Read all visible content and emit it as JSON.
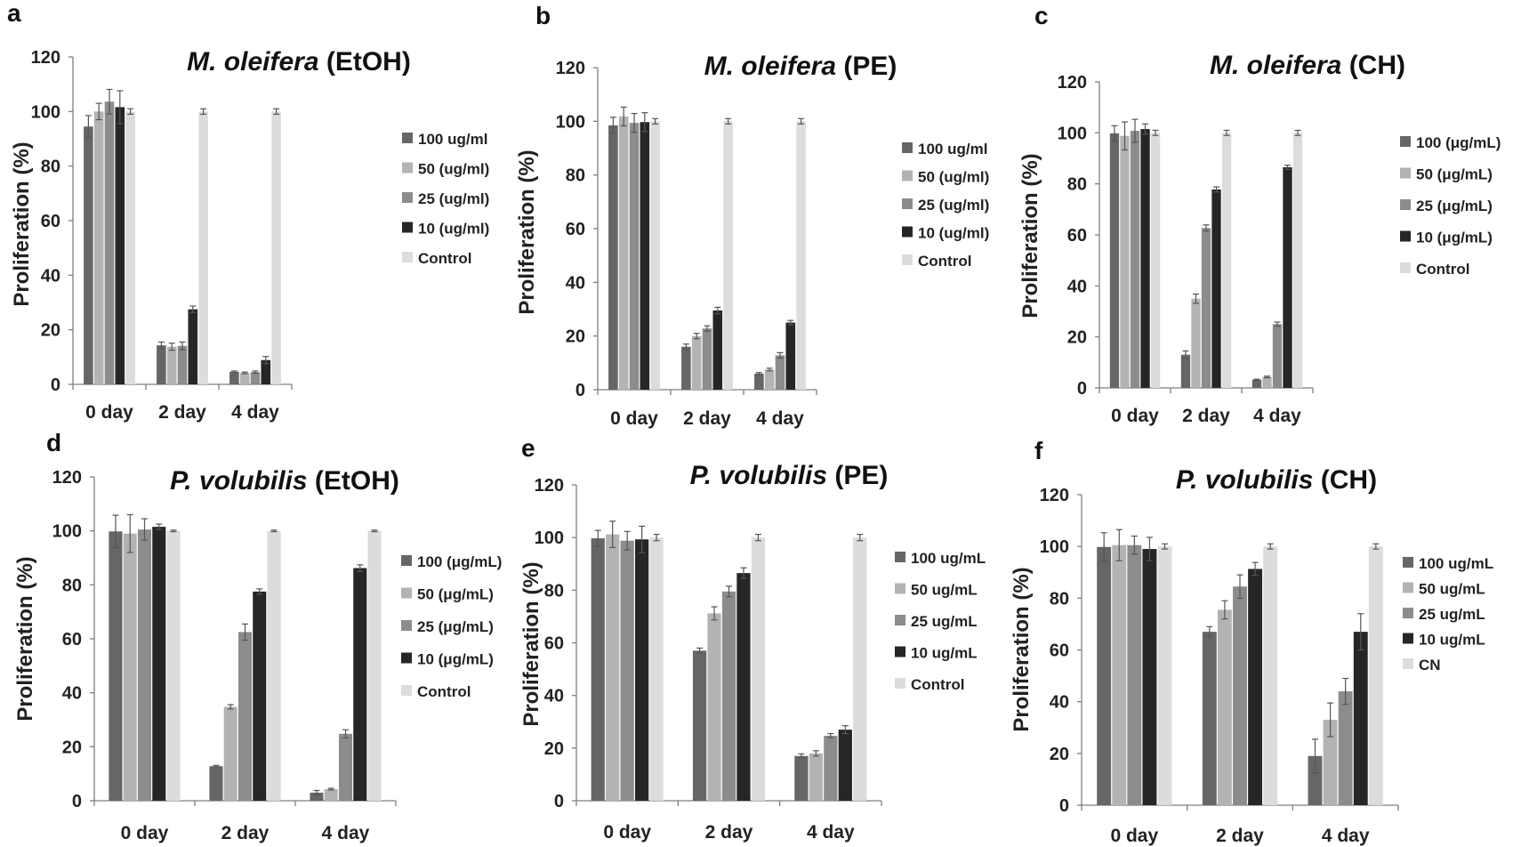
{
  "colors": {
    "series": [
      "#666666",
      "#b3b3b3",
      "#8c8c8c",
      "#262626",
      "#dcdcdc"
    ],
    "axis": "#7f7f7f",
    "errorbar": "#555555"
  },
  "chart_data": [
    {
      "panel": "a",
      "type": "bar",
      "title_italic": "M. oleifera",
      "title_rest": " (EtOH)",
      "ylabel": "Proliferation (%)",
      "ylim": [
        0,
        120
      ],
      "yticks": [
        0,
        20,
        40,
        60,
        80,
        100,
        120
      ],
      "categories": [
        "0 day",
        "2 day",
        "4 day"
      ],
      "series": [
        {
          "name": "100 ug/ml",
          "values": [
            94.5,
            14.3,
            4.6
          ],
          "errors": [
            4.0,
            1.2,
            0.3
          ]
        },
        {
          "name": "50 (ug/ml)",
          "values": [
            100.0,
            13.8,
            4.2
          ],
          "errors": [
            3.0,
            1.3,
            0.3
          ]
        },
        {
          "name": "25 (ug/ml)",
          "values": [
            103.6,
            14.1,
            4.5
          ],
          "errors": [
            4.5,
            1.4,
            0.4
          ]
        },
        {
          "name": "10 (ug/ml)",
          "values": [
            101.6,
            27.5,
            8.9
          ],
          "errors": [
            6.0,
            1.2,
            1.3
          ]
        },
        {
          "name": "Control",
          "values": [
            100.0,
            100.0,
            100.0
          ],
          "errors": [
            1.0,
            1.0,
            1.0
          ]
        }
      ]
    },
    {
      "panel": "b",
      "type": "bar",
      "title_italic": "M. oleifera",
      "title_rest": " (PE)",
      "ylabel": "Proliferation (%)",
      "ylim": [
        0,
        120
      ],
      "yticks": [
        0,
        20,
        40,
        60,
        80,
        100,
        120
      ],
      "categories": [
        "0 day",
        "2 day",
        "4 day"
      ],
      "series": [
        {
          "name": "100 ug/ml",
          "values": [
            98.5,
            16.0,
            6.0
          ],
          "errors": [
            3.0,
            1.0,
            0.4
          ]
        },
        {
          "name": "50 (ug/ml)",
          "values": [
            101.8,
            20.0,
            7.5
          ],
          "errors": [
            3.5,
            1.0,
            0.5
          ]
        },
        {
          "name": "25 (ug/ml)",
          "values": [
            99.4,
            22.8,
            12.8
          ],
          "errors": [
            3.5,
            1.0,
            1.0
          ]
        },
        {
          "name": "10 (ug/ml)",
          "values": [
            99.7,
            29.5,
            25.0
          ],
          "errors": [
            3.5,
            1.2,
            0.8
          ]
        },
        {
          "name": "Control",
          "values": [
            100.0,
            100.0,
            100.0
          ],
          "errors": [
            1.0,
            1.0,
            1.0
          ]
        }
      ]
    },
    {
      "panel": "c",
      "type": "bar",
      "title_italic": "M. oleifera",
      "title_rest": " (CH)",
      "ylabel": "Proliferation (%)",
      "ylim": [
        0,
        120
      ],
      "yticks": [
        0,
        20,
        40,
        60,
        80,
        100,
        120
      ],
      "categories": [
        "0 day",
        "2 day",
        "4 day"
      ],
      "series": [
        {
          "name": "100 (μg/mL)",
          "values": [
            99.8,
            13.0,
            3.2
          ],
          "errors": [
            3.0,
            1.5,
            0.2
          ]
        },
        {
          "name": "50  (μg/mL)",
          "values": [
            98.8,
            35.0,
            4.3
          ],
          "errors": [
            5.5,
            1.8,
            0.3
          ]
        },
        {
          "name": "25  (μg/mL)",
          "values": [
            100.8,
            62.7,
            25.0
          ],
          "errors": [
            4.5,
            1.2,
            0.8
          ]
        },
        {
          "name": "10  (μg/mL)",
          "values": [
            101.5,
            77.8,
            86.5
          ],
          "errors": [
            2.0,
            1.0,
            0.8
          ]
        },
        {
          "name": "Control",
          "values": [
            100.0,
            100.0,
            100.0
          ],
          "errors": [
            1.0,
            1.0,
            1.0
          ]
        }
      ]
    },
    {
      "panel": "d",
      "type": "bar",
      "title_italic": "P. volubilis",
      "title_rest": " (EtOH)",
      "ylabel": "Proliferation (%)",
      "ylim": [
        0,
        120
      ],
      "yticks": [
        0,
        20,
        40,
        60,
        80,
        100,
        120
      ],
      "categories": [
        "0 day",
        "2 day",
        "4 day"
      ],
      "series": [
        {
          "name": "100 (μg/mL)",
          "values": [
            99.8,
            12.8,
            3.0
          ],
          "errors": [
            6.0,
            0.3,
            0.8
          ]
        },
        {
          "name": "50  (μg/mL)",
          "values": [
            99.0,
            34.8,
            4.3
          ],
          "errors": [
            7.0,
            0.8,
            0.3
          ]
        },
        {
          "name": "25  (μg/mL)",
          "values": [
            100.5,
            62.5,
            24.8
          ],
          "errors": [
            4.0,
            3.0,
            1.5
          ]
        },
        {
          "name": "10  (μg/mL)",
          "values": [
            101.5,
            77.5,
            86.2
          ],
          "errors": [
            1.0,
            1.0,
            1.2
          ]
        },
        {
          "name": "Control",
          "values": [
            100.0,
            100.0,
            100.0
          ],
          "errors": [
            0.3,
            0.3,
            0.3
          ]
        }
      ]
    },
    {
      "panel": "e",
      "type": "bar",
      "title_italic": "P. volubilis",
      "title_rest": " (PE)",
      "ylabel": "Proliferation (%)",
      "ylim": [
        0,
        120
      ],
      "yticks": [
        0,
        20,
        40,
        60,
        80,
        100,
        120
      ],
      "categories": [
        "0 day",
        "2 day",
        "4 day"
      ],
      "series": [
        {
          "name": "100 ug/mL",
          "values": [
            99.7,
            57.0,
            17.0
          ],
          "errors": [
            3.0,
            1.0,
            0.8
          ]
        },
        {
          "name": "50 ug/mL",
          "values": [
            101.2,
            71.2,
            18.0
          ],
          "errors": [
            5.0,
            2.5,
            1.0
          ]
        },
        {
          "name": "25 ug/mL",
          "values": [
            98.8,
            79.5,
            24.7
          ],
          "errors": [
            3.5,
            2.0,
            0.8
          ]
        },
        {
          "name": "10 ug/mL",
          "values": [
            99.3,
            86.5,
            27.0
          ],
          "errors": [
            5.0,
            2.0,
            1.5
          ]
        },
        {
          "name": "Control",
          "values": [
            100.0,
            100.0,
            100.0
          ],
          "errors": [
            1.2,
            1.2,
            1.2
          ]
        }
      ]
    },
    {
      "panel": "f",
      "type": "bar",
      "title_italic": "P. volubilis",
      "title_rest": " (CH)",
      "ylabel": "Proliferation (%)",
      "ylim": [
        0,
        120
      ],
      "yticks": [
        0,
        20,
        40,
        60,
        80,
        100,
        120
      ],
      "categories": [
        "0 day",
        "2 day",
        "4 day"
      ],
      "series": [
        {
          "name": "100 ug/mL",
          "values": [
            99.8,
            67.0,
            19.0
          ],
          "errors": [
            5.5,
            2.0,
            6.5
          ]
        },
        {
          "name": "50 ug/mL",
          "values": [
            100.5,
            75.5,
            33.0
          ],
          "errors": [
            6.0,
            3.5,
            6.5
          ]
        },
        {
          "name": "25 ug/mL",
          "values": [
            100.5,
            84.5,
            44.0
          ],
          "errors": [
            3.5,
            4.5,
            5.0
          ]
        },
        {
          "name": "10 ug/mL",
          "values": [
            99.0,
            91.3,
            67.0
          ],
          "errors": [
            4.5,
            2.5,
            7.0
          ]
        },
        {
          "name": "CN",
          "values": [
            100.0,
            100.0,
            100.0
          ],
          "errors": [
            1.0,
            1.0,
            1.0
          ]
        }
      ]
    }
  ]
}
